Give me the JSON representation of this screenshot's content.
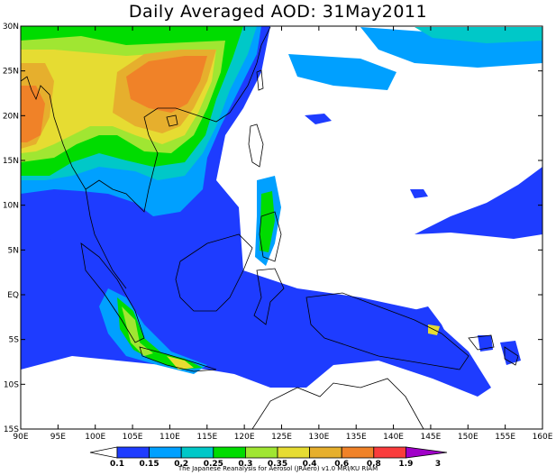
{
  "title": "Daily Averaged AOD: 31May2011",
  "lon_labels": [
    "90E",
    "95E",
    "100E",
    "105E",
    "110E",
    "115E",
    "120E",
    "125E",
    "130E",
    "135E",
    "140E",
    "145E",
    "150E",
    "155E",
    "160E"
  ],
  "lat_labels": [
    "30N",
    "25N",
    "20N",
    "15N",
    "10N",
    "5N",
    "EQ",
    "5S",
    "10S",
    "15S"
  ],
  "legend": {
    "levels": [
      "0.1",
      "0.15",
      "0.2",
      "0.25",
      "0.3",
      "0.35",
      "0.4",
      "0.6",
      "0.8",
      "1.9",
      "3"
    ],
    "colors": [
      "#1e3cff",
      "#00a0ff",
      "#00c8c8",
      "#00dc00",
      "#a0e632",
      "#e6dc32",
      "#e6af2d",
      "#f08228",
      "#fa3c3c",
      "#a000c8"
    ]
  },
  "credit": "The Japanese Reanalysis for Aerosol (JRAero) v1.0 MRI/KU RIAM",
  "palette": {
    "ocean": "#ffffff",
    "coast": "#000000"
  }
}
